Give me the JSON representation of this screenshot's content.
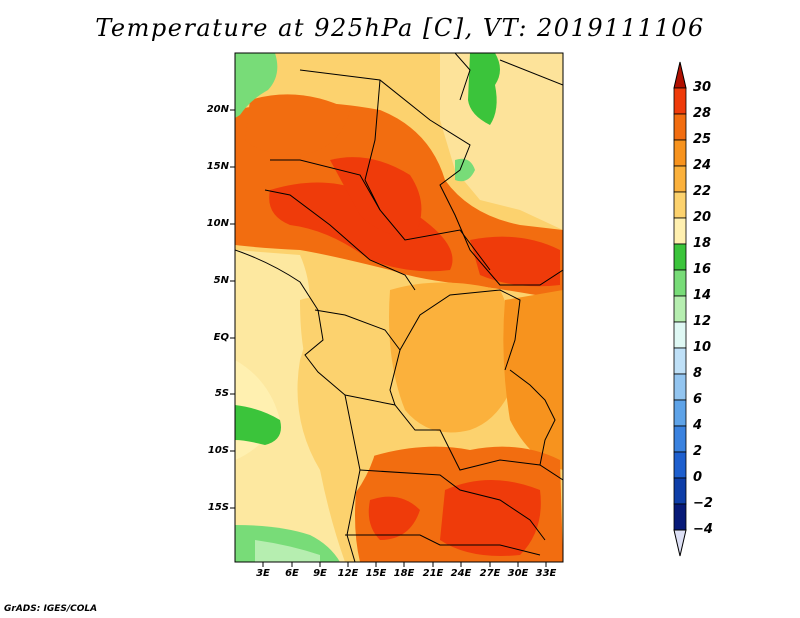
{
  "title": "Temperature at 925hPa [C], VT: 2019111106",
  "credit": "GrADS: IGES/COLA",
  "map": {
    "lat_labels": [
      "20N",
      "15N",
      "10N",
      "5N",
      "EQ",
      "5S",
      "10S",
      "15S"
    ],
    "lon_labels": [
      "3E",
      "6E",
      "9E",
      "12E",
      "15E",
      "18E",
      "21E",
      "24E",
      "27E",
      "30E",
      "33E"
    ]
  },
  "colorbar": {
    "labels": [
      "30",
      "28",
      "25",
      "24",
      "22",
      "20",
      "18",
      "16",
      "14",
      "12",
      "10",
      "8",
      "6",
      "4",
      "2",
      "0",
      "−2",
      "−4"
    ],
    "colors": [
      "#cc1b00",
      "#ef3b0a",
      "#f26d10",
      "#f7931e",
      "#fbb13c",
      "#fcd26e",
      "#fff0b0",
      "#3bc43b",
      "#78dc78",
      "#b6eeb0",
      "#dff8f4",
      "#bfe0f7",
      "#93c5f0",
      "#5ea3e8",
      "#3a82df",
      "#1e5fce",
      "#0e3ea8",
      "#071a78"
    ],
    "top_arrow_color": "#b01000",
    "bottom_arrow_color": "#dde0f5"
  }
}
